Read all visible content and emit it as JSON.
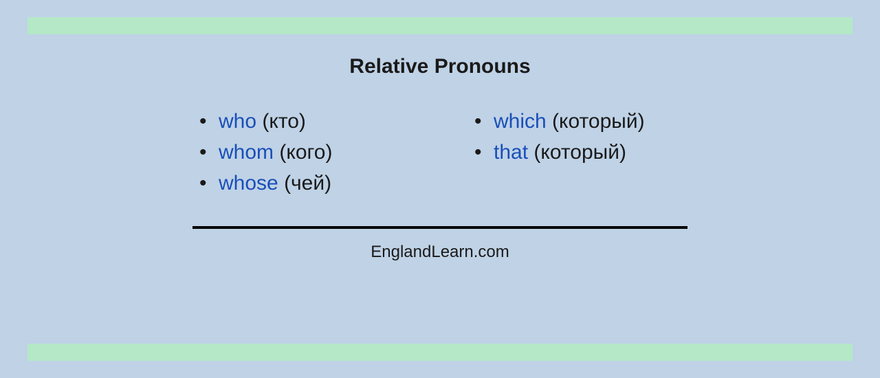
{
  "title": "Relative Pronouns",
  "footer": "EnglandLearn.com",
  "columns": {
    "left": [
      {
        "pronoun": "who",
        "translation": "(кто)"
      },
      {
        "pronoun": "whom",
        "translation": "(кого)"
      },
      {
        "pronoun": "whose",
        "translation": "(чей)"
      }
    ],
    "right": [
      {
        "pronoun": "which",
        "translation": "(который)"
      },
      {
        "pronoun": "that",
        "translation": "(который)"
      }
    ]
  },
  "styling": {
    "background_color": "#bfd2e6",
    "bar_color": "#b4e8c6",
    "pronoun_color": "#1a4fb8",
    "text_color": "#1a1a1a",
    "divider_color": "#000000",
    "title_fontsize": 30,
    "item_fontsize": 30,
    "footer_fontsize": 24,
    "divider_width": 720,
    "divider_height": 4
  }
}
